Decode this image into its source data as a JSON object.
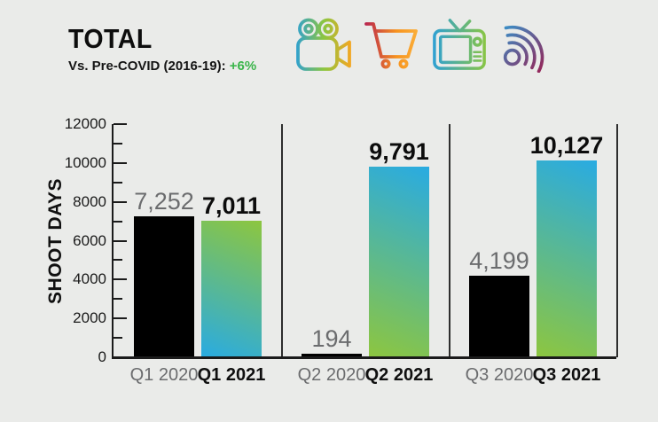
{
  "background_color": "#eaebe9",
  "header": {
    "title": "TOTAL",
    "subtitle_prefix": "Vs. Pre-COVID (2016-19): ",
    "subtitle_value": "+6%"
  },
  "icons": [
    {
      "name": "film-camera-icon"
    },
    {
      "name": "shopping-cart-icon"
    },
    {
      "name": "television-icon"
    },
    {
      "name": "broadcast-signal-icon"
    }
  ],
  "colors": {
    "accent_green": "#3ab54a",
    "bar_black": "#000000",
    "bar_gradient_blue": "#29abe2",
    "bar_gradient_green": "#8dc63f",
    "label_gray": "#6b6c6e"
  },
  "chart_data": {
    "type": "bar",
    "title": "TOTAL",
    "ylabel": "SHOOT DAYS",
    "xlabel": "",
    "ylim": [
      0,
      12000
    ],
    "y_major_ticks": [
      0,
      2000,
      4000,
      6000,
      8000,
      10000,
      12000
    ],
    "y_minor_tick_step": 1000,
    "grid": false,
    "legend_position": "none",
    "categories": [
      "Q1 2020",
      "Q1 2021",
      "Q2 2020",
      "Q2 2021",
      "Q3 2020",
      "Q3 2021"
    ],
    "values": [
      7252,
      7011,
      194,
      9791,
      4199,
      10127
    ],
    "groups": [
      {
        "name": "Q1",
        "bars": [
          {
            "label": "Q1 2020",
            "value": 7252,
            "display": "7,252",
            "series": "2020",
            "style": "black"
          },
          {
            "label": "Q1 2021",
            "value": 7011,
            "display": "7,011",
            "series": "2021",
            "style": "gradient-up"
          }
        ]
      },
      {
        "name": "Q2",
        "bars": [
          {
            "label": "Q2 2020",
            "value": 194,
            "display": "194",
            "series": "2020",
            "style": "black"
          },
          {
            "label": "Q2 2021",
            "value": 9791,
            "display": "9,791",
            "series": "2021",
            "style": "gradient-down"
          }
        ]
      },
      {
        "name": "Q3",
        "bars": [
          {
            "label": "Q3 2020",
            "value": 4199,
            "display": "4,199",
            "series": "2020",
            "style": "black"
          },
          {
            "label": "Q3 2021",
            "value": 10127,
            "display": "10,127",
            "series": "2021",
            "style": "gradient-down"
          }
        ]
      }
    ]
  }
}
